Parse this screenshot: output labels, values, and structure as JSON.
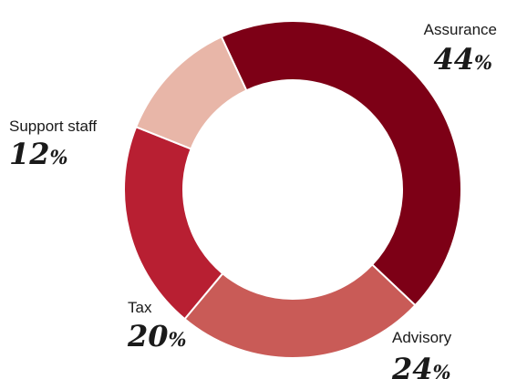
{
  "chart_data": {
    "type": "pie",
    "variant": "donut",
    "title": "",
    "unit": "%",
    "slices": [
      {
        "label": "Assurance",
        "value": 44,
        "color": "#7d0016"
      },
      {
        "label": "Advisory",
        "value": 24,
        "color": "#c95b57"
      },
      {
        "label": "Tax",
        "value": 20,
        "color": "#b81f32"
      },
      {
        "label": "Support staff",
        "value": 12,
        "color": "#e8b6a8"
      }
    ],
    "legend": "none",
    "start": "top, clockwise"
  }
}
